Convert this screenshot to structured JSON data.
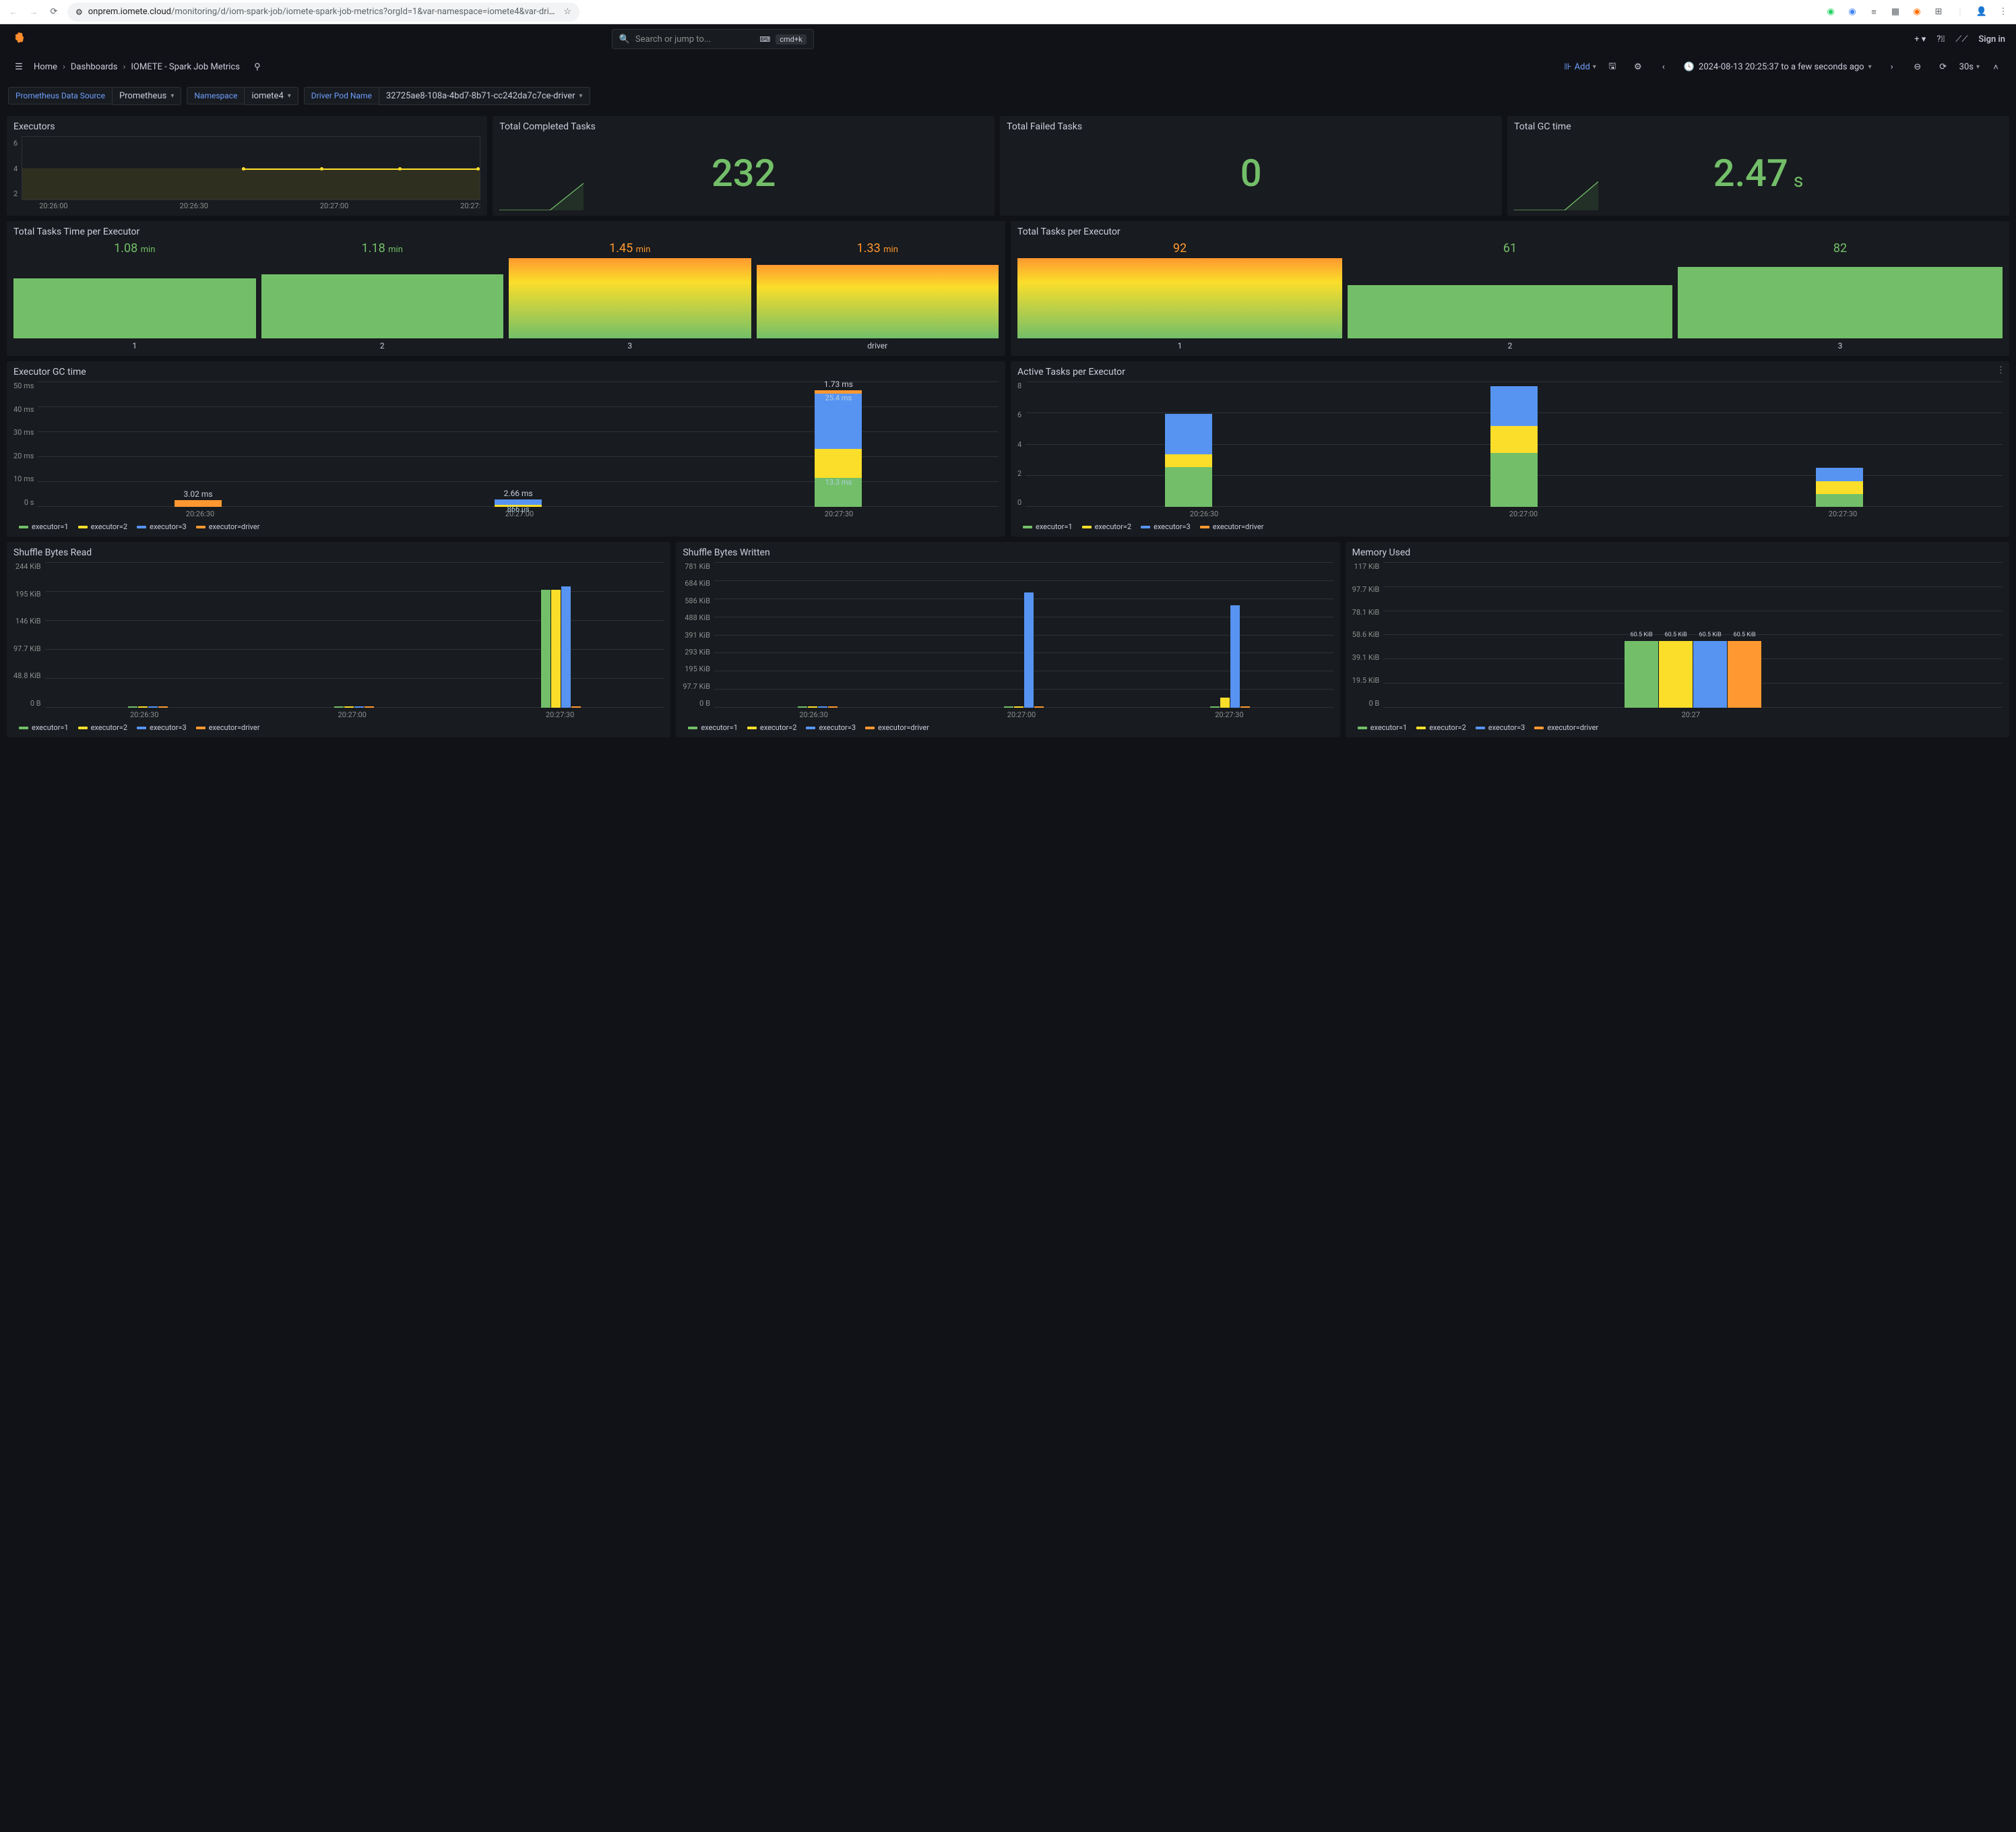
{
  "browser": {
    "url_domain": "onprem.iomete.cloud",
    "url_path": "/monitoring/d/iom-spark-job/iomete-spark-job-metrics?orgId=1&var-namespace=iomete4&var-driver_pod=32725ae8-108a-4b..."
  },
  "search": {
    "placeholder": "Search or jump to...",
    "kbd": "cmd+k"
  },
  "signin": "Sign in",
  "breadcrumb": {
    "home": "Home",
    "dashboards": "Dashboards",
    "page": "IOMETE - Spark Job Metrics"
  },
  "add_label": "Add",
  "timerange": "2024-08-13 20:25:37 to a few seconds ago",
  "refresh_interval": "30s",
  "vars": {
    "ds_label": "Prometheus Data Source",
    "ds_value": "Prometheus",
    "ns_label": "Namespace",
    "ns_value": "iomete4",
    "pod_label": "Driver Pod Name",
    "pod_value": "32725ae8-108a-4bd7-8b71-cc242da7c7ce-driver"
  },
  "panels": {
    "executors": {
      "title": "Executors",
      "y_ticks": [
        "6",
        "4",
        "2"
      ],
      "x_ticks": [
        "20:26:00",
        "20:26:30",
        "20:27:00",
        "20:27:"
      ]
    },
    "completed": {
      "title": "Total Completed Tasks",
      "value": "232"
    },
    "failed": {
      "title": "Total Failed Tasks",
      "value": "0"
    },
    "gctime": {
      "title": "Total GC time",
      "value": "2.47",
      "unit": "s"
    },
    "tasks_time": {
      "title": "Total Tasks Time per Executor",
      "items": [
        {
          "val": "1.08",
          "unit": "min",
          "h": 75,
          "label": "1",
          "orange": false
        },
        {
          "val": "1.18",
          "unit": "min",
          "h": 80,
          "label": "2",
          "orange": false
        },
        {
          "val": "1.45",
          "unit": "min",
          "h": 100,
          "label": "3",
          "orange": true,
          "grad": true
        },
        {
          "val": "1.33",
          "unit": "min",
          "h": 92,
          "label": "driver",
          "orange": true,
          "grad": true
        }
      ]
    },
    "tasks_count": {
      "title": "Total Tasks per Executor",
      "items": [
        {
          "val": "92",
          "h": 100,
          "label": "1",
          "orange": true,
          "grad": true
        },
        {
          "val": "61",
          "h": 66,
          "label": "2",
          "orange": false
        },
        {
          "val": "82",
          "h": 89,
          "label": "3",
          "orange": false
        }
      ]
    },
    "exec_gc": {
      "title": "Executor GC time",
      "y_ticks": [
        "50 ms",
        "40 ms",
        "30 ms",
        "20 ms",
        "10 ms",
        "0 s"
      ],
      "x_ticks": [
        "20:26:30",
        "20:27:00",
        "20:27:30"
      ],
      "groups": [
        {
          "top": "3.02 ms",
          "bars": [
            {
              "c": "c-orange",
              "h": 6
            }
          ]
        },
        {
          "top": "2.66 ms",
          "bars": [
            {
              "c": "c-blue",
              "h": 5
            },
            {
              "c": "c-yellow",
              "h": 2
            }
          ],
          "inlabels": [
            "",
            "866 µs"
          ]
        },
        {
          "top": "1.73 ms",
          "bars": [
            {
              "c": "c-orange",
              "h": 3
            },
            {
              "c": "c-blue",
              "h": 51
            },
            {
              "c": "c-yellow",
              "h": 27
            },
            {
              "c": "c-green",
              "h": 27
            }
          ],
          "inlabels": [
            "",
            "25.4 ms",
            "",
            "13.3 ms"
          ]
        }
      ]
    },
    "active": {
      "title": "Active Tasks per Executor",
      "y_ticks": [
        "8",
        "6",
        "4",
        "2",
        "0"
      ],
      "x_ticks": [
        "20:26:30",
        "20:27:00",
        "20:27:30"
      ],
      "groups": [
        {
          "bars": [
            {
              "c": "c-blue",
              "h": 37
            },
            {
              "c": "c-yellow",
              "h": 12
            },
            {
              "c": "c-green",
              "h": 37
            }
          ]
        },
        {
          "bars": [
            {
              "c": "c-blue",
              "h": 37
            },
            {
              "c": "c-yellow",
              "h": 25
            },
            {
              "c": "c-green",
              "h": 50
            }
          ]
        },
        {
          "bars": [
            {
              "c": "c-blue",
              "h": 12
            },
            {
              "c": "c-yellow",
              "h": 12
            },
            {
              "c": "c-green",
              "h": 12
            }
          ]
        }
      ]
    },
    "shuffle_read": {
      "title": "Shuffle Bytes Read",
      "y_ticks": [
        "244 KiB",
        "195 KiB",
        "146 KiB",
        "97.7 KiB",
        "48.8 KiB",
        "0 B"
      ],
      "x_ticks": [
        "20:26:30",
        "20:27:00",
        "20:27:30"
      ],
      "groups": [
        {
          "bars": [
            {
              "c": "c-green",
              "h": 1
            },
            {
              "c": "c-yellow",
              "h": 1
            },
            {
              "c": "c-blue",
              "h": 1
            },
            {
              "c": "c-orange",
              "h": 1
            }
          ]
        },
        {
          "bars": [
            {
              "c": "c-green",
              "h": 1
            },
            {
              "c": "c-yellow",
              "h": 1
            },
            {
              "c": "c-blue",
              "h": 1
            },
            {
              "c": "c-orange",
              "h": 1
            }
          ]
        },
        {
          "bars": [
            {
              "c": "c-green",
              "h": 92,
              "tl": ""
            },
            {
              "c": "c-yellow",
              "h": 92,
              "tl": ""
            },
            {
              "c": "c-blue",
              "h": 95,
              "tl": ""
            },
            {
              "c": "c-orange",
              "h": 1
            }
          ]
        }
      ]
    },
    "shuffle_write": {
      "title": "Shuffle Bytes Written",
      "y_ticks": [
        "781 KiB",
        "684 KiB",
        "586 KiB",
        "488 KiB",
        "391 KiB",
        "293 KiB",
        "195 KiB",
        "97.7 KiB",
        "0 B"
      ],
      "x_ticks": [
        "20:26:30",
        "20:27:00",
        "20:27:30"
      ],
      "groups": [
        {
          "bars": [
            {
              "c": "c-green",
              "h": 1
            },
            {
              "c": "c-yellow",
              "h": 1
            },
            {
              "c": "c-blue",
              "h": 1
            },
            {
              "c": "c-orange",
              "h": 1
            }
          ]
        },
        {
          "bars": [
            {
              "c": "c-green",
              "h": 1
            },
            {
              "c": "c-yellow",
              "h": 1
            },
            {
              "c": "c-blue",
              "h": 90
            },
            {
              "c": "c-orange",
              "h": 1
            }
          ]
        },
        {
          "bars": [
            {
              "c": "c-green",
              "h": 1
            },
            {
              "c": "c-yellow",
              "h": 8
            },
            {
              "c": "c-blue",
              "h": 80
            },
            {
              "c": "c-orange",
              "h": 1
            }
          ]
        }
      ]
    },
    "memory": {
      "title": "Memory Used",
      "y_ticks": [
        "117 KiB",
        "97.7 KiB",
        "78.1 KiB",
        "58.6 KiB",
        "39.1 KiB",
        "19.5 KiB",
        "0 B"
      ],
      "x_ticks": [
        "20:27"
      ],
      "groups": [
        {
          "bars": [
            {
              "c": "c-green",
              "h": 52,
              "tl": "60.5 KiB"
            },
            {
              "c": "c-yellow",
              "h": 52,
              "tl": "60.5 KiB"
            },
            {
              "c": "c-blue",
              "h": 52,
              "tl": "60.5 KiB"
            },
            {
              "c": "c-orange",
              "h": 52,
              "tl": "60.5 KiB"
            }
          ]
        }
      ]
    },
    "legend4": [
      {
        "c": "c-green",
        "l": "executor=1"
      },
      {
        "c": "c-yellow",
        "l": "executor=2"
      },
      {
        "c": "c-blue",
        "l": "executor=3"
      },
      {
        "c": "c-orange",
        "l": "executor=driver"
      }
    ]
  },
  "colors": {
    "green": "#73bf69",
    "yellow": "#fade2a",
    "blue": "#5794f2",
    "orange": "#ff9830",
    "bg": "#181b1f",
    "page": "#111217"
  }
}
